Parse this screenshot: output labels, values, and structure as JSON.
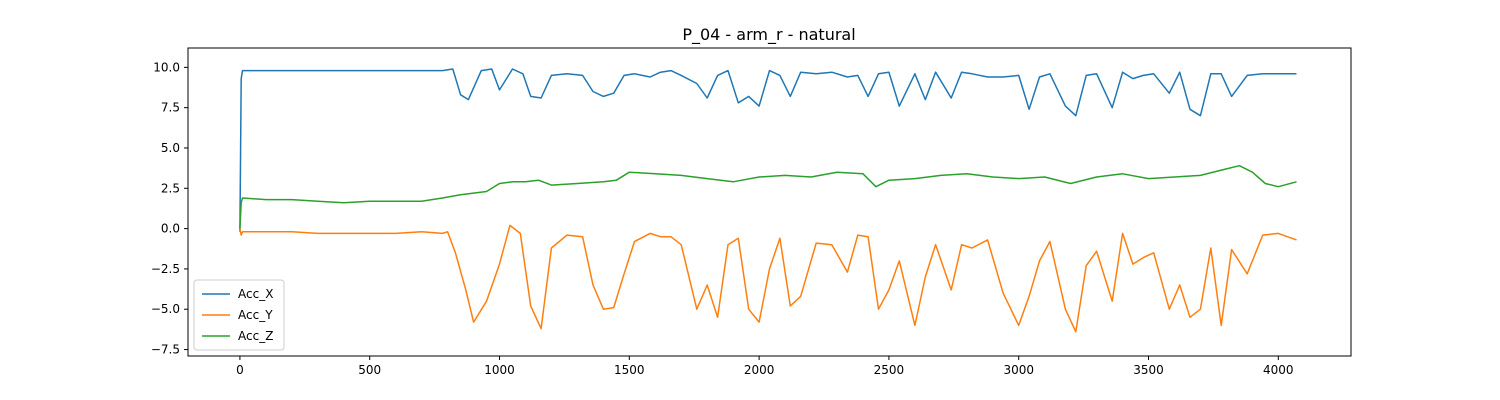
{
  "chart_data": {
    "type": "line",
    "title": "P_04 - arm_r - natural",
    "xlabel": "",
    "ylabel": "",
    "xlim": [
      -200,
      4280
    ],
    "ylim": [
      -7.9,
      11.2
    ],
    "xticks": [
      0,
      500,
      1000,
      1500,
      2000,
      2500,
      3000,
      3500,
      4000
    ],
    "yticks": [
      -7.5,
      -5.0,
      -2.5,
      0.0,
      2.5,
      5.0,
      7.5,
      10.0
    ],
    "ytick_labels": [
      "−7.5",
      "−5.0",
      "−2.5",
      "0.0",
      "2.5",
      "5.0",
      "7.5",
      "10.0"
    ],
    "grid": false,
    "legend_position": "lower-left",
    "series": [
      {
        "name": "Acc_X",
        "color": "#1f77b4",
        "x": [
          0,
          5,
          10,
          100,
          200,
          300,
          400,
          500,
          600,
          700,
          780,
          820,
          850,
          880,
          930,
          970,
          1000,
          1050,
          1090,
          1120,
          1160,
          1200,
          1260,
          1320,
          1360,
          1400,
          1440,
          1480,
          1520,
          1580,
          1620,
          1660,
          1700,
          1760,
          1800,
          1840,
          1880,
          1920,
          1960,
          2000,
          2040,
          2080,
          2120,
          2160,
          2220,
          2280,
          2340,
          2380,
          2420,
          2460,
          2500,
          2540,
          2600,
          2640,
          2680,
          2740,
          2780,
          2820,
          2880,
          2940,
          3000,
          3040,
          3080,
          3120,
          3180,
          3220,
          3260,
          3300,
          3360,
          3400,
          3440,
          3480,
          3520,
          3580,
          3620,
          3660,
          3700,
          3740,
          3780,
          3820,
          3880,
          3940,
          4000,
          4070
        ],
        "y": [
          -0.2,
          9.3,
          9.8,
          9.8,
          9.8,
          9.8,
          9.8,
          9.8,
          9.8,
          9.8,
          9.8,
          9.9,
          8.3,
          8.0,
          9.8,
          9.9,
          8.6,
          9.9,
          9.6,
          8.2,
          8.1,
          9.5,
          9.6,
          9.5,
          8.5,
          8.2,
          8.4,
          9.5,
          9.6,
          9.4,
          9.7,
          9.8,
          9.5,
          9.0,
          8.1,
          9.5,
          9.8,
          7.8,
          8.2,
          7.6,
          9.8,
          9.5,
          8.2,
          9.7,
          9.6,
          9.7,
          9.4,
          9.5,
          8.2,
          9.6,
          9.7,
          7.6,
          9.6,
          8.0,
          9.7,
          8.1,
          9.7,
          9.6,
          9.4,
          9.4,
          9.5,
          7.4,
          9.4,
          9.6,
          7.6,
          7.0,
          9.5,
          9.6,
          7.5,
          9.7,
          9.3,
          9.5,
          9.6,
          8.4,
          9.7,
          7.4,
          7.0,
          9.6,
          9.6,
          8.2,
          9.5,
          9.6,
          9.6,
          9.6
        ]
      },
      {
        "name": "Acc_Y",
        "color": "#ff7f0e",
        "x": [
          0,
          5,
          10,
          100,
          200,
          300,
          400,
          500,
          600,
          700,
          780,
          800,
          830,
          870,
          900,
          950,
          1000,
          1040,
          1080,
          1120,
          1160,
          1200,
          1260,
          1320,
          1360,
          1400,
          1440,
          1480,
          1520,
          1580,
          1620,
          1660,
          1700,
          1760,
          1800,
          1840,
          1880,
          1920,
          1960,
          2000,
          2040,
          2080,
          2120,
          2160,
          2220,
          2280,
          2340,
          2380,
          2420,
          2460,
          2500,
          2540,
          2600,
          2640,
          2680,
          2740,
          2780,
          2820,
          2880,
          2940,
          3000,
          3040,
          3080,
          3120,
          3180,
          3220,
          3260,
          3300,
          3360,
          3400,
          3440,
          3480,
          3520,
          3580,
          3620,
          3660,
          3700,
          3740,
          3780,
          3820,
          3880,
          3940,
          4000,
          4070
        ],
        "y": [
          0.0,
          -0.4,
          -0.2,
          -0.2,
          -0.2,
          -0.3,
          -0.3,
          -0.3,
          -0.3,
          -0.2,
          -0.3,
          -0.2,
          -1.5,
          -3.8,
          -5.8,
          -4.5,
          -2.2,
          0.2,
          -0.3,
          -4.8,
          -6.2,
          -1.2,
          -0.4,
          -0.5,
          -3.5,
          -5.0,
          -4.9,
          -2.8,
          -0.8,
          -0.3,
          -0.5,
          -0.5,
          -1.0,
          -5.0,
          -3.5,
          -5.5,
          -1.0,
          -0.6,
          -5.0,
          -5.8,
          -2.5,
          -0.6,
          -4.8,
          -4.2,
          -0.9,
          -1.0,
          -2.7,
          -0.4,
          -0.5,
          -5.0,
          -3.8,
          -2.0,
          -6.0,
          -3.0,
          -1.0,
          -3.8,
          -1.0,
          -1.2,
          -0.7,
          -4.0,
          -6.0,
          -4.2,
          -2.0,
          -0.8,
          -5.0,
          -6.4,
          -2.3,
          -1.4,
          -4.5,
          -0.3,
          -2.2,
          -1.8,
          -1.5,
          -5.0,
          -3.5,
          -5.5,
          -5.0,
          -1.2,
          -6.0,
          -1.3,
          -2.8,
          -0.4,
          -0.3,
          -0.7
        ]
      },
      {
        "name": "Acc_Z",
        "color": "#2ca02c",
        "x": [
          0,
          5,
          10,
          100,
          200,
          300,
          400,
          500,
          600,
          700,
          780,
          850,
          900,
          950,
          1000,
          1050,
          1100,
          1150,
          1200,
          1300,
          1400,
          1450,
          1500,
          1600,
          1700,
          1800,
          1900,
          2000,
          2100,
          2200,
          2300,
          2400,
          2450,
          2500,
          2600,
          2700,
          2800,
          2900,
          3000,
          3100,
          3200,
          3300,
          3400,
          3500,
          3600,
          3700,
          3800,
          3850,
          3900,
          3950,
          4000,
          4070
        ],
        "y": [
          0.0,
          1.6,
          1.9,
          1.8,
          1.8,
          1.7,
          1.6,
          1.7,
          1.7,
          1.7,
          1.9,
          2.1,
          2.2,
          2.3,
          2.8,
          2.9,
          2.9,
          3.0,
          2.7,
          2.8,
          2.9,
          3.0,
          3.5,
          3.4,
          3.3,
          3.1,
          2.9,
          3.2,
          3.3,
          3.2,
          3.5,
          3.4,
          2.6,
          3.0,
          3.1,
          3.3,
          3.4,
          3.2,
          3.1,
          3.2,
          2.8,
          3.2,
          3.4,
          3.1,
          3.2,
          3.3,
          3.7,
          3.9,
          3.5,
          2.8,
          2.6,
          2.9
        ]
      }
    ]
  }
}
